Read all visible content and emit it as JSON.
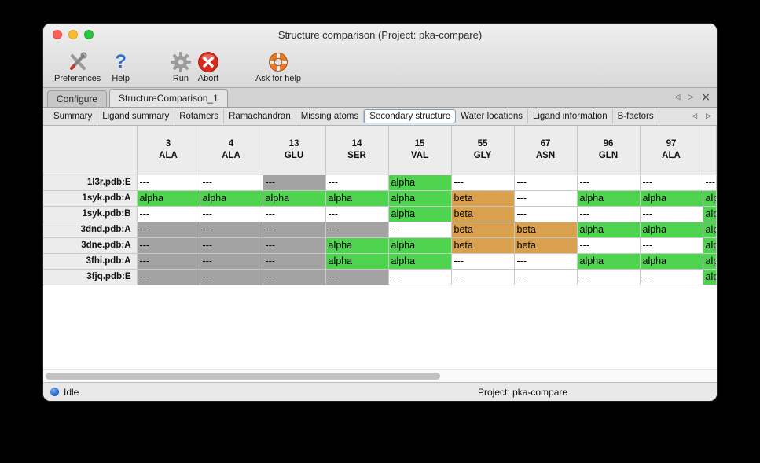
{
  "window": {
    "title": "Structure comparison (Project: pka-compare)"
  },
  "toolbar": {
    "items": [
      {
        "label": "Preferences",
        "icon": "tools-icon"
      },
      {
        "label": "Help",
        "icon": "question-mark-icon"
      },
      {
        "label": "Run",
        "icon": "gear-icon"
      },
      {
        "label": "Abort",
        "icon": "abort-x-icon"
      },
      {
        "label": "Ask for help",
        "icon": "life-ring-icon"
      }
    ]
  },
  "tabs": {
    "items": [
      {
        "label": "Configure",
        "selected": false
      },
      {
        "label": "StructureComparison_1",
        "selected": true
      }
    ],
    "nav_left": "◁",
    "nav_right": "▷",
    "nav_close": "×"
  },
  "subtabs": {
    "items": [
      "Summary",
      "Ligand summary",
      "Rotamers",
      "Ramachandran",
      "Missing atoms",
      "Secondary structure",
      "Water locations",
      "Ligand information",
      "B-factors"
    ],
    "selected": "Secondary structure",
    "nav_left": "◁",
    "nav_right": "▷"
  },
  "table": {
    "columns": [
      {
        "num": "3",
        "res": "ALA"
      },
      {
        "num": "4",
        "res": "ALA"
      },
      {
        "num": "13",
        "res": "GLU"
      },
      {
        "num": "14",
        "res": "SER"
      },
      {
        "num": "15",
        "res": "VAL"
      },
      {
        "num": "55",
        "res": "GLY"
      },
      {
        "num": "67",
        "res": "ASN"
      },
      {
        "num": "96",
        "res": "GLN"
      },
      {
        "num": "97",
        "res": "ALA"
      }
    ],
    "partial_header": "",
    "rows": [
      {
        "label": "1l3r.pdb:E",
        "cells": [
          {
            "text": "---",
            "bg": "none"
          },
          {
            "text": "---",
            "bg": "none"
          },
          {
            "text": "---",
            "bg": "gray"
          },
          {
            "text": "---",
            "bg": "none"
          },
          {
            "text": "alpha",
            "bg": "alpha"
          },
          {
            "text": "---",
            "bg": "none"
          },
          {
            "text": "---",
            "bg": "none"
          },
          {
            "text": "---",
            "bg": "none"
          },
          {
            "text": "---",
            "bg": "none"
          },
          {
            "text": "---",
            "bg": "none"
          }
        ]
      },
      {
        "label": "1syk.pdb:A",
        "cells": [
          {
            "text": "alpha",
            "bg": "alpha"
          },
          {
            "text": "alpha",
            "bg": "alpha"
          },
          {
            "text": "alpha",
            "bg": "alpha"
          },
          {
            "text": "alpha",
            "bg": "alpha"
          },
          {
            "text": "alpha",
            "bg": "alpha"
          },
          {
            "text": "beta",
            "bg": "beta"
          },
          {
            "text": "---",
            "bg": "none"
          },
          {
            "text": "alpha",
            "bg": "alpha"
          },
          {
            "text": "alpha",
            "bg": "alpha"
          },
          {
            "text": "alpha",
            "bg": "alpha"
          }
        ]
      },
      {
        "label": "1syk.pdb:B",
        "cells": [
          {
            "text": "---",
            "bg": "none"
          },
          {
            "text": "---",
            "bg": "none"
          },
          {
            "text": "---",
            "bg": "none"
          },
          {
            "text": "---",
            "bg": "none"
          },
          {
            "text": "alpha",
            "bg": "alpha"
          },
          {
            "text": "beta",
            "bg": "beta"
          },
          {
            "text": "---",
            "bg": "none"
          },
          {
            "text": "---",
            "bg": "none"
          },
          {
            "text": "---",
            "bg": "none"
          },
          {
            "text": "alpha",
            "bg": "alpha"
          }
        ]
      },
      {
        "label": "3dnd.pdb:A",
        "cells": [
          {
            "text": "---",
            "bg": "gray"
          },
          {
            "text": "---",
            "bg": "gray"
          },
          {
            "text": "---",
            "bg": "gray"
          },
          {
            "text": "---",
            "bg": "gray"
          },
          {
            "text": "---",
            "bg": "none"
          },
          {
            "text": "beta",
            "bg": "beta"
          },
          {
            "text": "beta",
            "bg": "beta"
          },
          {
            "text": "alpha",
            "bg": "alpha"
          },
          {
            "text": "alpha",
            "bg": "alpha"
          },
          {
            "text": "alpha",
            "bg": "alpha"
          }
        ]
      },
      {
        "label": "3dne.pdb:A",
        "cells": [
          {
            "text": "---",
            "bg": "gray"
          },
          {
            "text": "---",
            "bg": "gray"
          },
          {
            "text": "---",
            "bg": "gray"
          },
          {
            "text": "alpha",
            "bg": "alpha"
          },
          {
            "text": "alpha",
            "bg": "alpha"
          },
          {
            "text": "beta",
            "bg": "beta"
          },
          {
            "text": "beta",
            "bg": "beta"
          },
          {
            "text": "---",
            "bg": "none"
          },
          {
            "text": "---",
            "bg": "none"
          },
          {
            "text": "alpha",
            "bg": "alpha"
          }
        ]
      },
      {
        "label": "3fhi.pdb:A",
        "cells": [
          {
            "text": "---",
            "bg": "gray"
          },
          {
            "text": "---",
            "bg": "gray"
          },
          {
            "text": "---",
            "bg": "gray"
          },
          {
            "text": "alpha",
            "bg": "alpha"
          },
          {
            "text": "alpha",
            "bg": "alpha"
          },
          {
            "text": "---",
            "bg": "none"
          },
          {
            "text": "---",
            "bg": "none"
          },
          {
            "text": "alpha",
            "bg": "alpha"
          },
          {
            "text": "alpha",
            "bg": "alpha"
          },
          {
            "text": "alpha",
            "bg": "alpha"
          }
        ]
      },
      {
        "label": "3fjq.pdb:E",
        "cells": [
          {
            "text": "---",
            "bg": "gray"
          },
          {
            "text": "---",
            "bg": "gray"
          },
          {
            "text": "---",
            "bg": "gray"
          },
          {
            "text": "---",
            "bg": "gray"
          },
          {
            "text": "---",
            "bg": "none"
          },
          {
            "text": "---",
            "bg": "none"
          },
          {
            "text": "---",
            "bg": "none"
          },
          {
            "text": "---",
            "bg": "none"
          },
          {
            "text": "---",
            "bg": "none"
          },
          {
            "text": "alpha",
            "bg": "alpha"
          }
        ]
      }
    ]
  },
  "statusbar": {
    "status": "Idle",
    "project": "Project: pka-compare"
  },
  "colors": {
    "alpha_helix": "#4ed44e",
    "beta_sheet": "#d9a04d",
    "unassigned_gray": "#a3a3a3",
    "status_idle_blue": "#1b55be",
    "help_blue": "#2b6ccc",
    "abort_red": "#d7281c",
    "life_ring_orange": "#e8792b"
  }
}
